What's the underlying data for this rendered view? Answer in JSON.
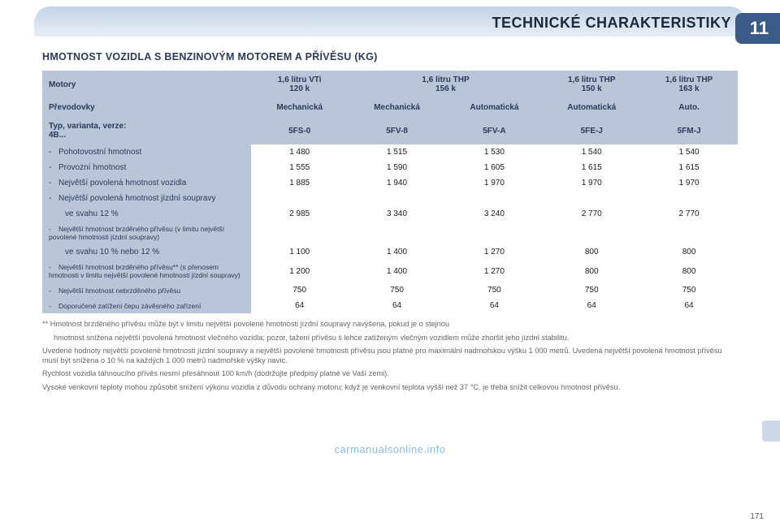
{
  "chapter_number": "11",
  "header_title": "TECHNICKÉ CHARAKTERISTIKY",
  "subtitle": "HMOTNOST VOZIDLA S BENZINOVÝM MOTOREM A PŘÍVĚSU (KG)",
  "page_bottom": "171",
  "watermark": "carmanualsonline.info",
  "table": {
    "head": {
      "r1": {
        "lbl": "Motory",
        "c1": "1,6 litru VTi\n120 k",
        "c2": "1,6 litru THP\n156 k",
        "c3": "1,6 litru THP\n150 k",
        "c4": "1,6 litru THP\n163 k"
      },
      "r2": {
        "lbl": "Převodovky",
        "c1": "Mechanická",
        "c2": "Mechanická",
        "c3": "Automatická",
        "c4": "Automatická",
        "c5": "Auto."
      },
      "r3": {
        "lbl": "Typ, varianta, verze:\n4B...",
        "c1": "5FS-0",
        "c2": "5FV-8",
        "c3": "5FV-A",
        "c4": "5FE-J",
        "c5": "5FM-J"
      }
    },
    "rows": [
      {
        "lbl": "Pohotovostní hmotnost",
        "dash": true,
        "v": [
          "1 480",
          "1 515",
          "1 530",
          "1 540",
          "1 540"
        ]
      },
      {
        "lbl": "Provozní hmotnost",
        "dash": true,
        "v": [
          "1 555",
          "1 590",
          "1 605",
          "1 615",
          "1 615"
        ]
      },
      {
        "lbl": "Největší povolená hmotnost vozidla",
        "dash": true,
        "v": [
          "1 885",
          "1 940",
          "1 970",
          "1 970",
          "1 970"
        ]
      },
      {
        "lbl": "Největší povolená hmotnost jízdní soupravy",
        "dash": true,
        "v": [
          "",
          "",
          "",
          "",
          ""
        ]
      },
      {
        "lbl": "ve svahu 12 %",
        "indent": true,
        "v": [
          "2 985",
          "3 340",
          "3 240",
          "2 770",
          "2 770"
        ]
      },
      {
        "lbl": "Největší hmotnost brzděného přívěsu (v limitu největší povolené hmotnosti jízdní soupravy)",
        "dash": true,
        "small": true,
        "v": [
          "",
          "",
          "",
          "",
          ""
        ]
      },
      {
        "lbl": "ve svahu 10 % nebo 12 %",
        "indent": true,
        "v": [
          "1 100",
          "1 400",
          "1 270",
          "800",
          "800"
        ]
      },
      {
        "lbl": "Největší hmotnost brzděného přívěsu** (s přenosem hmotnosti v limitu největší povolené hmotnosti jízdní soupravy)",
        "dash": true,
        "small": true,
        "v": [
          "1 200",
          "1 400",
          "1 270",
          "800",
          "800"
        ]
      },
      {
        "lbl": "Největší hmotnost nebrzděného přívěsu",
        "dash": true,
        "small": true,
        "v": [
          "750",
          "750",
          "750",
          "750",
          "750"
        ]
      },
      {
        "lbl": "Doporučené zatížení čepu závěsného zařízení",
        "dash": true,
        "small": true,
        "v": [
          "64",
          "64",
          "64",
          "64",
          "64"
        ]
      }
    ]
  },
  "footnotes": {
    "p1a": "** Hmotnost brzděného přívěsu může být v limitu největší povolené hmotnosti jízdní soupravy navýšena, pokud je o stejnou",
    "p1b": "hmotnost snížena největší povolená hmotnost vlečného vozidla; pozor, tažení přívěsu s lehce zatíženým vlečným vozidlem může zhoršit jeho jízdní stabilitu.",
    "p2": "Uvedené hodnoty největší povolené hmotnosti jízdní soupravy a největší povolené hmotnosti přívěsu jsou platné pro maxi­mální nadmořskou výšku 1 000 metrů. Uvedená největší povolená hmotnost přívěsu musí být snížena o 10 % na každých 1 000 metrů nadmořské výšky navíc.",
    "p3": "Rychlost vozidla táhnoucího přívěs nesmí přesáhnout 100 km/h (dodržujte předpisy platné ve Vaší zemi).",
    "p4": "Vysoké venkovní teploty mohou způsobit snížení výkonu vozidla z důvodu ochrany motoru; když je venkovní teplota vyšší než 37 °C, je třeba snížit celkovou hmotnost přívěsu."
  }
}
